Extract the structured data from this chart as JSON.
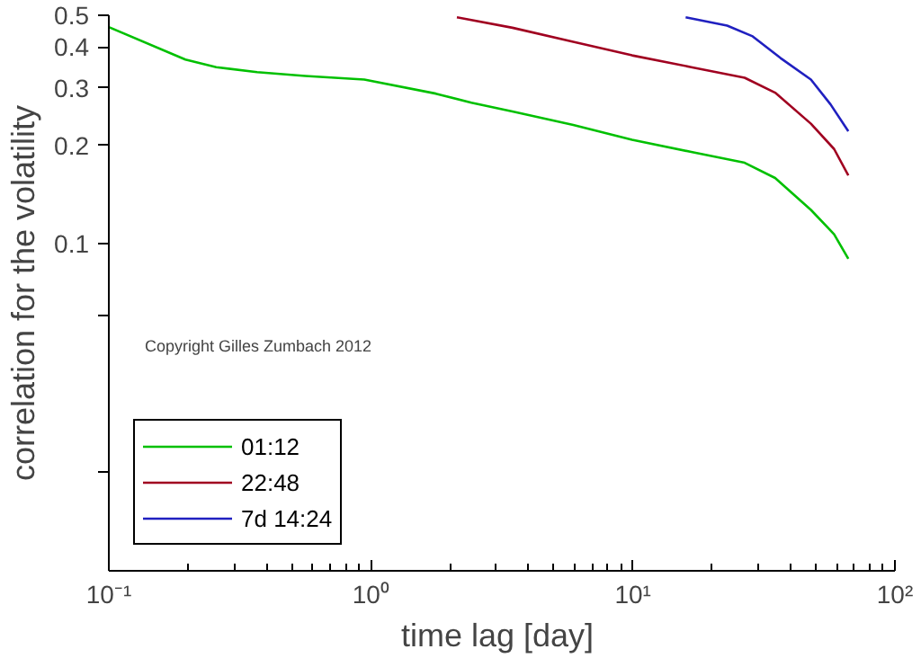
{
  "chart_data": {
    "type": "line",
    "xlabel": "time lag  [day]",
    "ylabel": "correlation for the volatility",
    "log": "xy",
    "xlim": [
      0.1,
      100
    ],
    "ylim": [
      0.01,
      0.5
    ],
    "xticks": [
      {
        "value": 0.1,
        "label": "10⁻¹"
      },
      {
        "value": 1,
        "label": "10⁰"
      },
      {
        "value": 10,
        "label": "10¹"
      },
      {
        "value": 100,
        "label": "10²"
      }
    ],
    "yticks": [
      {
        "value": 0.02,
        "label": null
      },
      {
        "value": 0.06,
        "label": null
      },
      0.1,
      0.2,
      0.3,
      0.4,
      0.5
    ],
    "grid": false,
    "legend": "bottom left",
    "marker": "none",
    "line_style": "solid",
    "annotations": [
      "Copyright Gilles Zumbach 2012"
    ],
    "series": [
      {
        "name": "01:12",
        "color": "#00c000",
        "x": [
          0.1,
          0.196,
          0.257,
          0.368,
          0.562,
          0.944,
          1.77,
          2.42,
          3.47,
          5.92,
          9.93,
          16.7,
          26.7,
          34.9,
          47.8,
          58.6,
          66.4
        ],
        "values": [
          0.46,
          0.366,
          0.347,
          0.335,
          0.326,
          0.318,
          0.288,
          0.27,
          0.254,
          0.231,
          0.208,
          0.191,
          0.177,
          0.159,
          0.127,
          0.107,
          0.09
        ]
      },
      {
        "name": "22:48",
        "color": "#a00020",
        "x": [
          2.13,
          3.47,
          5.92,
          9.93,
          16.7,
          26.7,
          34.9,
          47.8,
          58.6,
          66.4
        ],
        "values": [
          0.493,
          0.458,
          0.415,
          0.377,
          0.347,
          0.322,
          0.29,
          0.233,
          0.195,
          0.162
        ]
      },
      {
        "name": "7d 14:24",
        "color": "#2020c0",
        "x": [
          15.9,
          22.9,
          28.5,
          36.6,
          47.8,
          56.8,
          66.4
        ],
        "values": [
          0.493,
          0.465,
          0.432,
          0.37,
          0.318,
          0.267,
          0.221
        ]
      }
    ]
  }
}
